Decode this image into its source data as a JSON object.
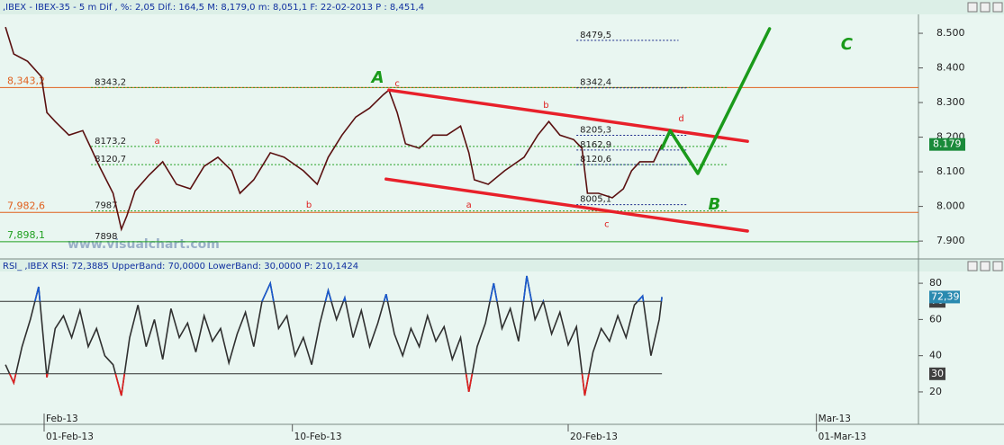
{
  "watermark": "www.visualchart.com",
  "chart_data": [
    {
      "type": "line",
      "title": ",IBEX - IBEX-35 - 5 m Dif , %: 2,05 Dif.: 164,5 M: 8,179,0 m: 8,051,1 F: 22-02-2013 P : 8,451,4",
      "color": "#5a1010",
      "x": [
        -1.4,
        -1.1,
        -0.6,
        -0.1,
        0.1,
        0.4,
        0.9,
        1.4,
        1.7,
        2.0,
        2.5,
        2.8,
        3.0,
        3.3,
        3.8,
        4.3,
        4.8,
        5.3,
        5.8,
        6.3,
        6.8,
        7.1,
        7.6,
        8.2,
        8.7,
        9.4,
        9.9,
        10.3,
        10.8,
        11.3,
        11.8,
        12.3,
        12.5,
        12.8,
        13.1,
        13.6,
        14.1,
        14.6,
        15.1,
        15.4,
        15.6,
        16.1,
        16.7,
        17.4,
        17.9,
        18.3,
        18.7,
        19.2,
        19.5,
        19.7,
        20.1,
        20.6,
        21.0,
        21.3,
        21.6,
        22.1,
        22.4
      ],
      "values": [
        8518,
        8440,
        8419,
        8375,
        8271,
        8245,
        8206,
        8219,
        8168,
        8116,
        8038,
        7934,
        7973,
        8045,
        8090,
        8129,
        8064,
        8051,
        8116,
        8142,
        8103,
        8038,
        8077,
        8155,
        8142,
        8103,
        8064,
        8142,
        8206,
        8258,
        8284,
        8323,
        8336,
        8271,
        8181,
        8168,
        8206,
        8206,
        8232,
        8155,
        8077,
        8064,
        8103,
        8142,
        8206,
        8245,
        8206,
        8193,
        8168,
        8038,
        8038,
        8025,
        8051,
        8103,
        8129,
        8129,
        8179
      ],
      "xlim": [
        -1.6,
        31.7
      ],
      "ylim": [
        7851,
        8552
      ],
      "yticks": [
        {
          "value": 8500,
          "label": "8.500"
        },
        {
          "value": 8400,
          "label": "8.400"
        },
        {
          "value": 8300,
          "label": "8.300"
        },
        {
          "value": 8200,
          "label": "8.200"
        },
        {
          "value": 8100,
          "label": "8.100"
        },
        {
          "value": 8000,
          "label": "8.000"
        },
        {
          "value": 7900,
          "label": "7.900"
        }
      ],
      "last": {
        "value": 8179,
        "label": "8.179",
        "color": "#1a8a3a"
      },
      "levels": [
        {
          "value": 8343.2,
          "label": "8,343,2",
          "color": "#e0601e"
        },
        {
          "value": 7982.6,
          "label": "7,982,6",
          "color": "#e0601e"
        },
        {
          "value": 7898.1,
          "label": "7,898,1",
          "color": "#20a020"
        }
      ],
      "price_labels": [
        {
          "value": 8343.2,
          "label": "8343,2",
          "x": 1.7,
          "x2": 24.8,
          "color": "#20a020"
        },
        {
          "value": 8173.2,
          "label": "8173,2",
          "x": 1.7,
          "x2": 24.8,
          "color": "#20a020"
        },
        {
          "value": 8120.7,
          "label": "8120,7",
          "x": 1.7,
          "x2": 24.8,
          "color": "#20a020"
        },
        {
          "value": 7987,
          "label": "7987",
          "x": 1.7,
          "x2": 24.8,
          "color": "#20a020"
        },
        {
          "value": 7898,
          "label": "7898",
          "x": 1.7,
          "x2": 1.7,
          "color": "#20a020"
        },
        {
          "value": 8479.5,
          "label": "8479,5",
          "x": 19.3,
          "x2": 23.0,
          "color": "#1a2a8a"
        },
        {
          "value": 8342.4,
          "label": "8342,4",
          "x": 19.3,
          "x2": 23.3,
          "color": "#1a2a8a"
        },
        {
          "value": 8205.3,
          "label": "8205,3",
          "x": 19.3,
          "x2": 23.3,
          "color": "#1a2a8a"
        },
        {
          "value": 8162.9,
          "label": "8162,9",
          "x": 19.3,
          "x2": 23.3,
          "color": "#1a2a8a"
        },
        {
          "value": 8120.6,
          "label": "8120,6",
          "x": 19.3,
          "x2": 23.3,
          "color": "#1a2a8a"
        },
        {
          "value": 8005.1,
          "label": "8005,1",
          "x": 19.3,
          "x2": 23.3,
          "color": "#1a2a8a"
        }
      ],
      "trendlines": [
        {
          "color": "#e8202a",
          "x": [
            12.5,
            25.5
          ],
          "y": [
            8336,
            8188
          ]
        },
        {
          "color": "#e8202a",
          "x": [
            12.4,
            25.5
          ],
          "y": [
            8079,
            7929
          ]
        },
        {
          "color": "#1a9a1a",
          "x": [
            22.4,
            22.7,
            23.7,
            26.3
          ],
          "y": [
            8168,
            8219,
            8095,
            8513
          ]
        }
      ],
      "annotations": [
        {
          "text": "A",
          "x": 12.1,
          "y": 8370,
          "color": "#1a9a1a"
        },
        {
          "text": "B",
          "x": 24.3,
          "y": 8004,
          "color": "#1a9a1a"
        },
        {
          "text": "C",
          "x": 29.1,
          "y": 8466,
          "color": "#1a9a1a"
        },
        {
          "text": "c",
          "x": 12.8,
          "y": 8355,
          "color": "#e02020"
        },
        {
          "text": "a",
          "x": 4.1,
          "y": 8188,
          "color": "#e02020"
        },
        {
          "text": "b",
          "x": 9.6,
          "y": 8004,
          "color": "#e02020"
        },
        {
          "text": "a",
          "x": 15.4,
          "y": 8004,
          "color": "#e02020"
        },
        {
          "text": "b",
          "x": 18.2,
          "y": 8292,
          "color": "#e02020"
        },
        {
          "text": "c",
          "x": 20.4,
          "y": 7949,
          "color": "#e02020"
        },
        {
          "text": "d",
          "x": 23.1,
          "y": 8253,
          "color": "#e02020"
        }
      ]
    },
    {
      "type": "line",
      "title": "RSI_ ,IBEX RSI: 72,3885 UpperBand: 70,0000 LowerBand: 30,0000 P: 210,1424",
      "color": "#303030",
      "x": [
        -1.4,
        -1.1,
        -0.8,
        -0.5,
        -0.2,
        0.1,
        0.4,
        0.7,
        1.0,
        1.3,
        1.6,
        1.9,
        2.2,
        2.5,
        2.8,
        3.1,
        3.4,
        3.7,
        4.0,
        4.3,
        4.6,
        4.9,
        5.2,
        5.5,
        5.8,
        6.1,
        6.4,
        6.7,
        7.0,
        7.3,
        7.6,
        7.9,
        8.2,
        8.5,
        8.8,
        9.1,
        9.4,
        9.7,
        10.0,
        10.3,
        10.6,
        10.9,
        11.2,
        11.5,
        11.8,
        12.1,
        12.4,
        12.7,
        13.0,
        13.3,
        13.6,
        13.9,
        14.2,
        14.5,
        14.8,
        15.1,
        15.4,
        15.7,
        16.0,
        16.3,
        16.6,
        16.9,
        17.2,
        17.5,
        17.8,
        18.1,
        18.4,
        18.7,
        19.0,
        19.3,
        19.6,
        19.9,
        20.2,
        20.5,
        20.8,
        21.1,
        21.4,
        21.7,
        22.0,
        22.3,
        22.4
      ],
      "values": [
        35,
        25,
        45,
        60,
        78,
        28,
        55,
        62,
        50,
        65,
        45,
        55,
        40,
        35,
        18,
        50,
        68,
        45,
        60,
        38,
        66,
        50,
        58,
        42,
        62,
        48,
        55,
        36,
        52,
        64,
        45,
        70,
        80,
        55,
        62,
        40,
        50,
        35,
        58,
        76,
        60,
        72,
        50,
        65,
        45,
        58,
        74,
        52,
        40,
        55,
        45,
        62,
        48,
        56,
        38,
        50,
        20,
        45,
        58,
        80,
        55,
        66,
        48,
        84,
        60,
        70,
        52,
        64,
        46,
        56,
        18,
        42,
        55,
        48,
        62,
        50,
        68,
        73,
        40,
        60,
        72.39
      ],
      "xlim": [
        -1.6,
        31.7
      ],
      "ylim": [
        2.6,
        86
      ],
      "yticks": [
        80,
        60,
        40,
        20
      ],
      "bands": [
        70,
        30
      ],
      "upper_color": "#1a5ad0",
      "lower_color": "#e02020",
      "last": {
        "value": 72.39,
        "label": "72,39",
        "color": "#2a8ab0"
      },
      "xticks": [
        {
          "value": 0,
          "label": "01-Feb-13"
        },
        {
          "value": 9,
          "label": "10-Feb-13"
        },
        {
          "value": 19,
          "label": "20-Feb-13"
        },
        {
          "value": 28,
          "label": "01-Mar-13"
        }
      ],
      "month_ticks": [
        {
          "value": 0,
          "label": "Feb-13"
        },
        {
          "value": 28,
          "label": "Mar-13"
        }
      ]
    }
  ]
}
